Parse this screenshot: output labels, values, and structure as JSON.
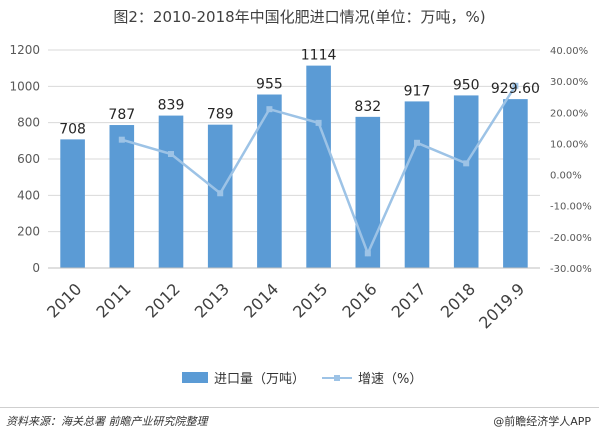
{
  "title": "图2：2010-2018年中国化肥进口情况(单位：万吨，%)",
  "source": "资料来源：海关总署 前瞻产业研究院整理",
  "brand": "@前瞻经济学人APP",
  "colors": {
    "bar": "#5b9bd5",
    "line": "#9dc3e6",
    "grid": "#d9d9d9",
    "axis_text": "#595959"
  },
  "chart_data": {
    "type": "bar",
    "categories": [
      "2010",
      "2011",
      "2012",
      "2013",
      "2014",
      "2015",
      "2016",
      "2017",
      "2018",
      "2019.9"
    ],
    "series": [
      {
        "name": "进口量（万吨）",
        "type": "bar",
        "axis": "left",
        "values": [
          708,
          787,
          839,
          789,
          955,
          1114,
          832,
          917,
          950,
          929.6
        ],
        "labels": [
          "708",
          "787",
          "839",
          "789",
          "955",
          "1114",
          "832",
          "917",
          "950",
          "929.60"
        ]
      },
      {
        "name": "增速（%）",
        "type": "line",
        "axis": "right",
        "values": [
          null,
          11.2,
          6.6,
          -6.0,
          21.0,
          16.6,
          -25.3,
          10.2,
          3.6,
          28.5
        ]
      }
    ],
    "y_left": {
      "min": 0,
      "max": 1200,
      "ticks": [
        "0",
        "200",
        "400",
        "600",
        "800",
        "1000",
        "1200"
      ]
    },
    "y_right": {
      "min": -30,
      "max": 40,
      "ticks": [
        "-30.00%",
        "-20.00%",
        "-10.00%",
        "0.00%",
        "10.00%",
        "20.00%",
        "30.00%",
        "40.00%"
      ]
    },
    "grid": true,
    "legend_position": "bottom"
  }
}
